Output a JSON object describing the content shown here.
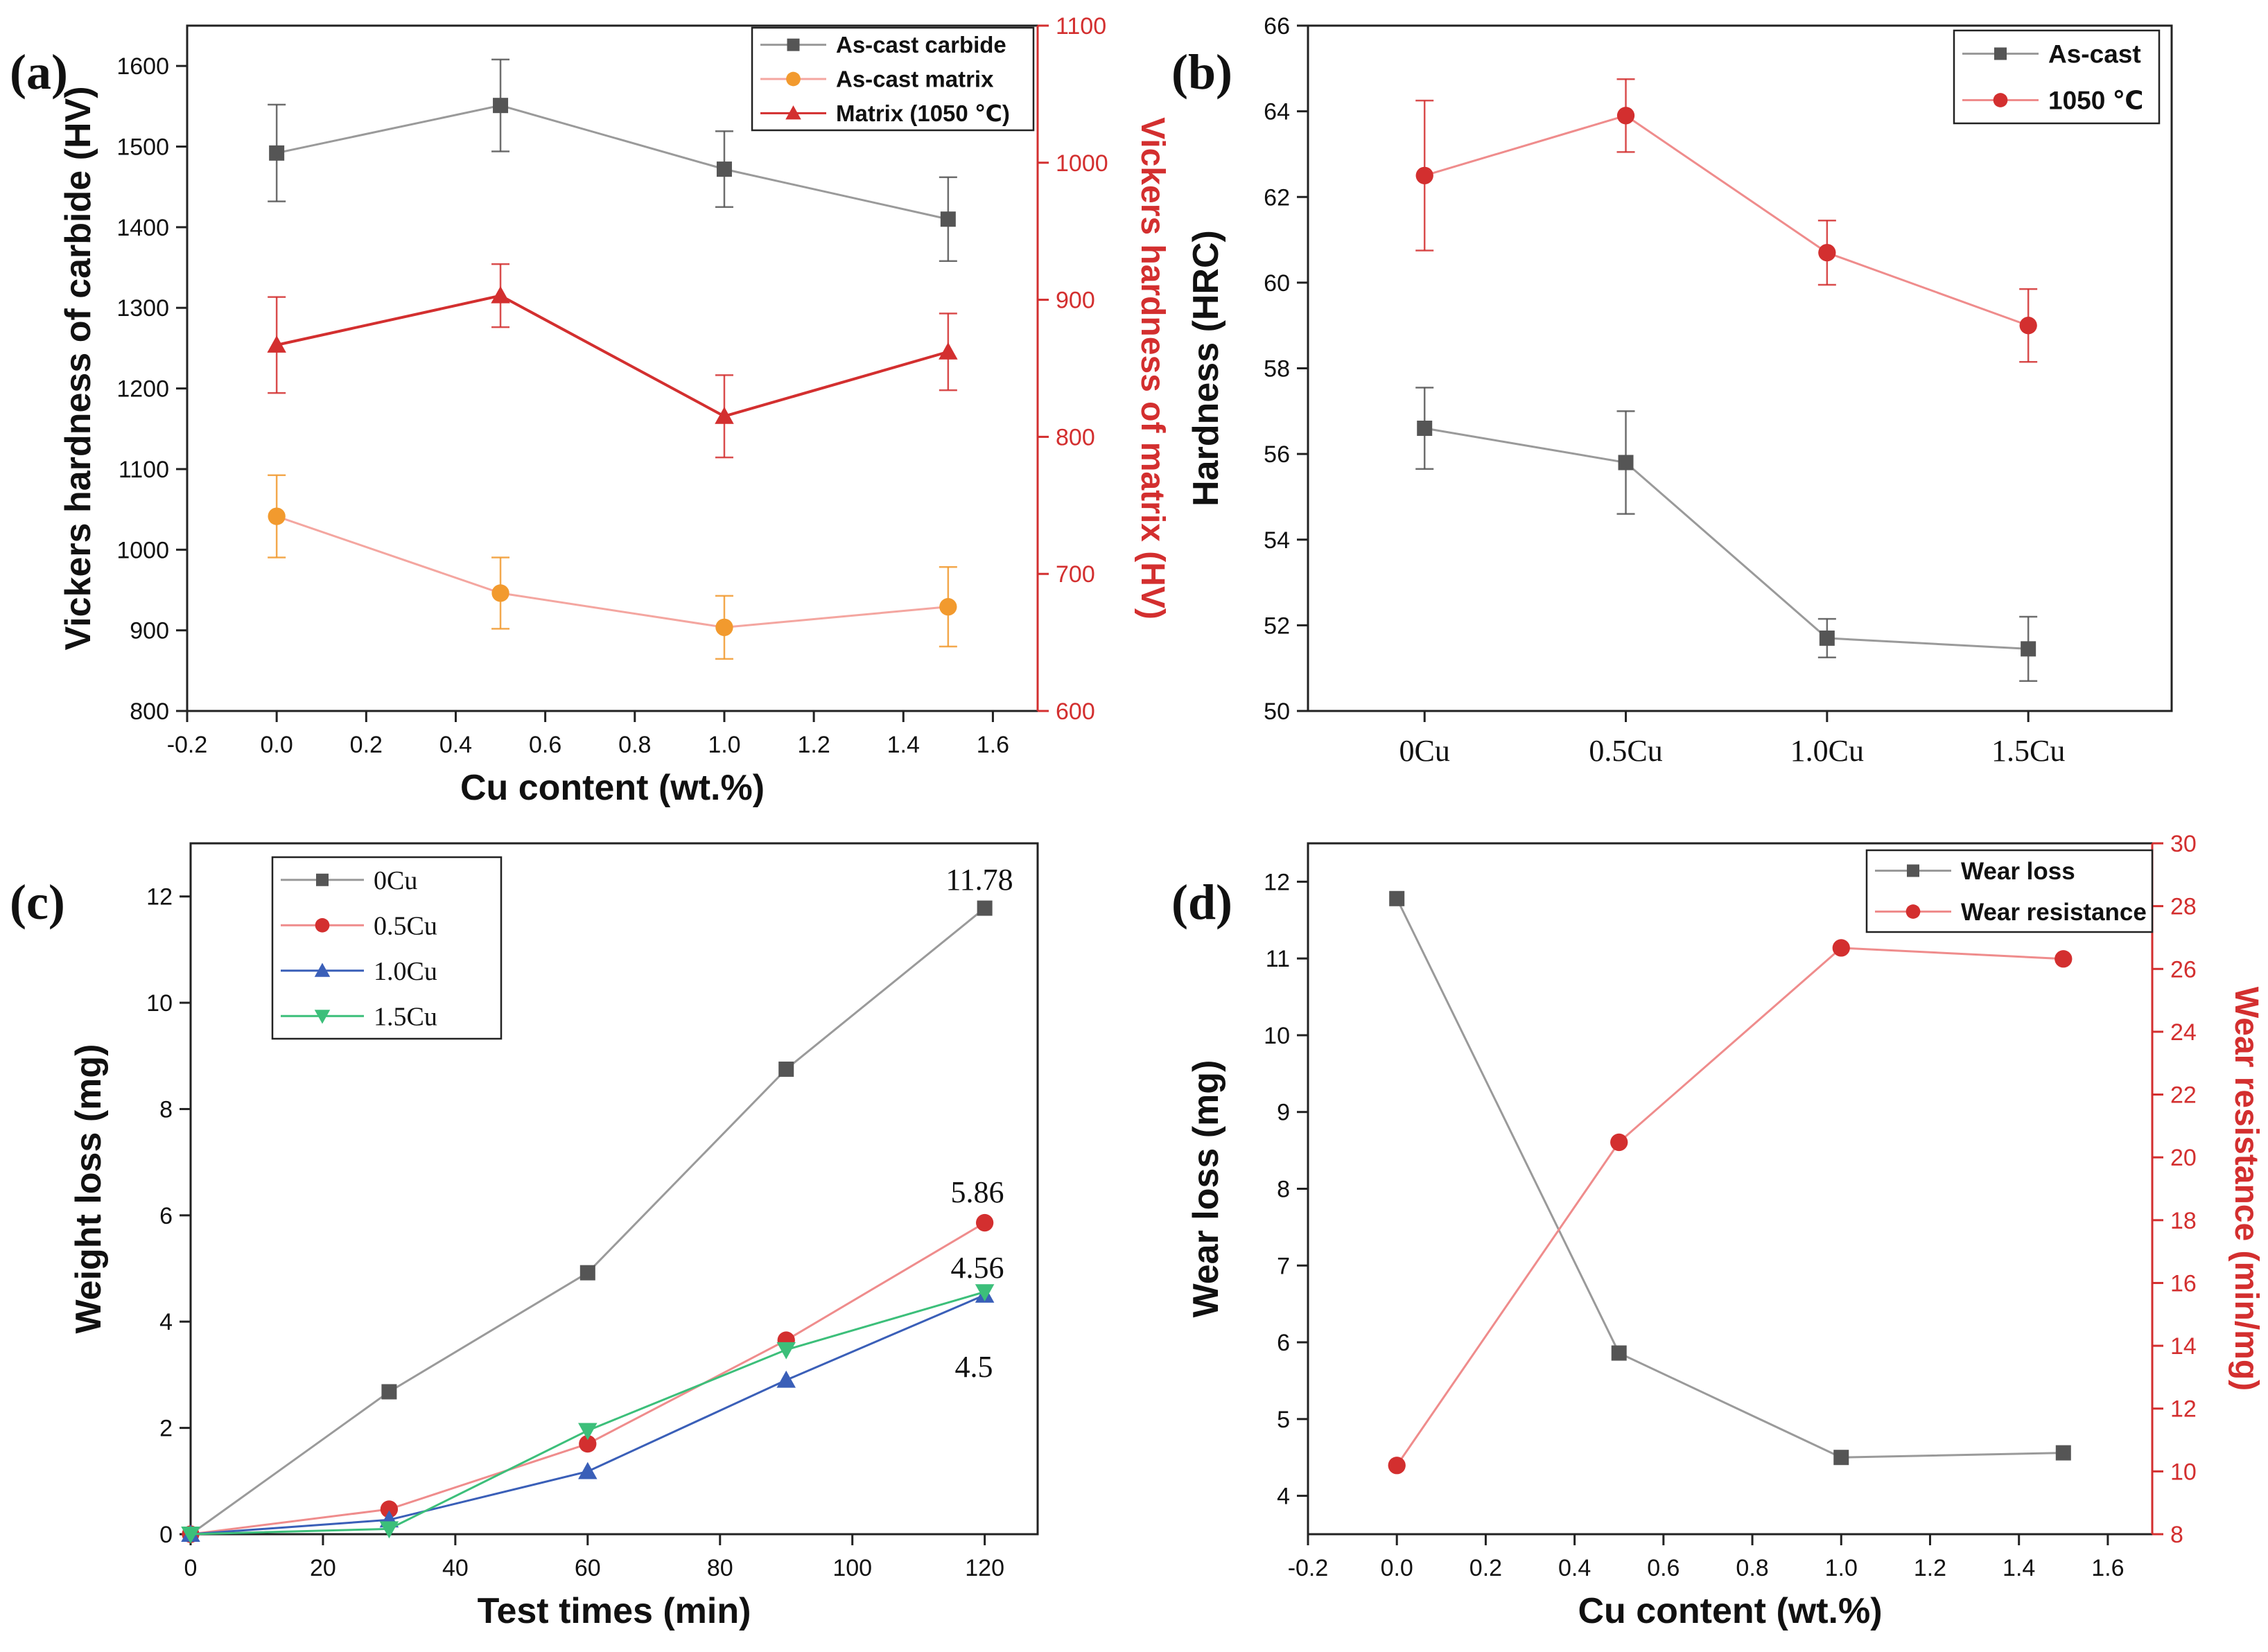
{
  "colors": {
    "gray": "#555555",
    "gray_light": "#9a9a9a",
    "red": "#d32f2f",
    "red_light": "#ef8c8c",
    "orange": "#f29a2e",
    "orange_light": "#f4a6a0",
    "blue": "#3a5fb8",
    "green": "#3cbf7a",
    "axis_red": "#d32f2f",
    "black": "#111111"
  },
  "chart_data": [
    {
      "id": "a",
      "panel_label": "(a)",
      "type": "line",
      "xlabel": "Cu content (wt.%)",
      "ylabel": "Vickers hardness of carbide (HV)",
      "y2label": "Vickers hardness of matrix (HV)",
      "xlim": [
        -0.2,
        1.7
      ],
      "ylim": [
        800,
        1650
      ],
      "y2lim": [
        600,
        1100
      ],
      "xticks": [
        -0.2,
        0.0,
        0.2,
        0.4,
        0.6,
        0.8,
        1.0,
        1.2,
        1.4,
        1.6
      ],
      "xtick_labels": [
        "-0.2",
        "0.0",
        "0.2",
        "0.4",
        "0.6",
        "0.8",
        "1.0",
        "1.2",
        "1.4",
        "1.6"
      ],
      "yticks": [
        800,
        900,
        1000,
        1100,
        1200,
        1300,
        1400,
        1500,
        1600
      ],
      "ytick_labels": [
        "800",
        "900",
        "1000",
        "1100",
        "1200",
        "1300",
        "1400",
        "1500",
        "1600"
      ],
      "y2ticks": [
        600,
        700,
        800,
        900,
        1000,
        1100
      ],
      "y2tick_labels": [
        "600",
        "700",
        "800",
        "900",
        "1000",
        "1100"
      ],
      "legend_position": "top-right",
      "series": [
        {
          "name": "As-cast carbide",
          "axis": "left",
          "marker": "square",
          "color": "gray_light",
          "marker_color": "gray",
          "x": [
            0.0,
            0.5,
            1.0,
            1.5
          ],
          "values": [
            1492,
            1551,
            1472,
            1410
          ],
          "errors": [
            60,
            57,
            47,
            52
          ]
        },
        {
          "name": "As-cast matrix",
          "axis": "right",
          "marker": "circle",
          "color": "orange_light",
          "marker_color": "orange",
          "x": [
            0.0,
            0.5,
            1.0,
            1.5
          ],
          "values": [
            742,
            686,
            661,
            676
          ],
          "errors": [
            30,
            26,
            23,
            29
          ]
        },
        {
          "name": "Matrix (1050 ℃)",
          "axis": "right",
          "marker": "triangle",
          "color": "red",
          "marker_color": "red",
          "x": [
            0.0,
            0.5,
            1.0,
            1.5
          ],
          "values": [
            867,
            903,
            815,
            862
          ],
          "errors": [
            35,
            23,
            30,
            28
          ]
        }
      ]
    },
    {
      "id": "b",
      "panel_label": "(b)",
      "type": "line",
      "xlabel": "",
      "ylabel": "Hardness (HRC)",
      "categories": [
        "0Cu",
        "0.5Cu",
        "1.0Cu",
        "1.5Cu"
      ],
      "ylim": [
        50,
        66
      ],
      "yticks": [
        50,
        52,
        54,
        56,
        58,
        60,
        62,
        64,
        66
      ],
      "ytick_labels": [
        "50",
        "52",
        "54",
        "56",
        "58",
        "60",
        "62",
        "64",
        "66"
      ],
      "legend_position": "top-right",
      "series": [
        {
          "name": "As-cast",
          "marker": "square",
          "color": "gray_light",
          "marker_color": "gray",
          "values": [
            56.6,
            55.8,
            51.7,
            51.45
          ],
          "errors": [
            0.95,
            1.2,
            0.45,
            0.75
          ]
        },
        {
          "name": "1050 ℃",
          "marker": "circle",
          "color": "red_light",
          "marker_color": "red",
          "values": [
            62.5,
            63.9,
            60.7,
            59.0
          ],
          "errors": [
            1.75,
            0.85,
            0.75,
            0.85
          ]
        }
      ]
    },
    {
      "id": "c",
      "panel_label": "(c)",
      "type": "line",
      "xlabel": "Test times (min)",
      "ylabel": "Weight loss (mg)",
      "xlim": [
        0,
        128
      ],
      "ylim": [
        0,
        13
      ],
      "xticks": [
        0,
        20,
        40,
        60,
        80,
        100,
        120
      ],
      "xtick_labels": [
        "0",
        "20",
        "40",
        "60",
        "80",
        "100",
        "120"
      ],
      "yticks": [
        0,
        2,
        4,
        6,
        8,
        10,
        12
      ],
      "ytick_labels": [
        "0",
        "2",
        "4",
        "6",
        "8",
        "10",
        "12"
      ],
      "legend_position": "top-left",
      "annotations": [
        "11.78",
        "5.86",
        "4.56",
        "4.5"
      ],
      "series": [
        {
          "name": "0Cu",
          "marker": "square",
          "color": "gray_light",
          "marker_color": "gray",
          "x": [
            0,
            30,
            60,
            90,
            120
          ],
          "values": [
            0,
            2.68,
            4.92,
            8.75,
            11.78
          ]
        },
        {
          "name": "0.5Cu",
          "marker": "circle",
          "color": "red_light",
          "marker_color": "red",
          "x": [
            0,
            30,
            60,
            90,
            120
          ],
          "values": [
            0,
            0.47,
            1.7,
            3.65,
            5.86
          ]
        },
        {
          "name": "1.0Cu",
          "marker": "triangle",
          "color": "blue",
          "marker_color": "blue",
          "x": [
            0,
            30,
            60,
            90,
            120
          ],
          "values": [
            0,
            0.27,
            1.18,
            2.9,
            4.5
          ]
        },
        {
          "name": "1.5Cu",
          "marker": "triangle-down",
          "color": "green",
          "marker_color": "green",
          "x": [
            0,
            30,
            60,
            90,
            120
          ],
          "values": [
            0,
            0.1,
            1.95,
            3.47,
            4.56
          ]
        }
      ]
    },
    {
      "id": "d",
      "panel_label": "(d)",
      "type": "line",
      "xlabel": "Cu content (wt.%)",
      "ylabel": "Wear loss (mg)",
      "y2label": "Wear resistance (min/mg)",
      "xlim": [
        -0.2,
        1.7
      ],
      "ylim": [
        3.5,
        12.5
      ],
      "y2lim": [
        8,
        30
      ],
      "xticks": [
        -0.2,
        0.0,
        0.2,
        0.4,
        0.6,
        0.8,
        1.0,
        1.2,
        1.4,
        1.6
      ],
      "xtick_labels": [
        "-0.2",
        "0.0",
        "0.2",
        "0.4",
        "0.6",
        "0.8",
        "1.0",
        "1.2",
        "1.4",
        "1.6"
      ],
      "yticks": [
        4,
        5,
        6,
        7,
        8,
        9,
        10,
        11,
        12
      ],
      "ytick_labels": [
        "4",
        "5",
        "6",
        "7",
        "8",
        "9",
        "10",
        "11",
        "12"
      ],
      "y2ticks": [
        8,
        10,
        12,
        14,
        16,
        18,
        20,
        22,
        24,
        26,
        28,
        30
      ],
      "y2tick_labels": [
        "8",
        "10",
        "12",
        "14",
        "16",
        "18",
        "20",
        "22",
        "24",
        "26",
        "28",
        "30"
      ],
      "legend_position": "top-right",
      "series": [
        {
          "name": "Wear loss",
          "axis": "left",
          "marker": "square",
          "color": "gray_light",
          "marker_color": "gray",
          "x": [
            0.0,
            0.5,
            1.0,
            1.5
          ],
          "values": [
            11.78,
            5.86,
            4.5,
            4.56
          ]
        },
        {
          "name": "Wear resistance",
          "axis": "right",
          "marker": "circle",
          "color": "red_light",
          "marker_color": "red",
          "x": [
            0.0,
            0.5,
            1.0,
            1.5
          ],
          "values": [
            10.19,
            20.48,
            26.67,
            26.32
          ]
        }
      ]
    }
  ]
}
